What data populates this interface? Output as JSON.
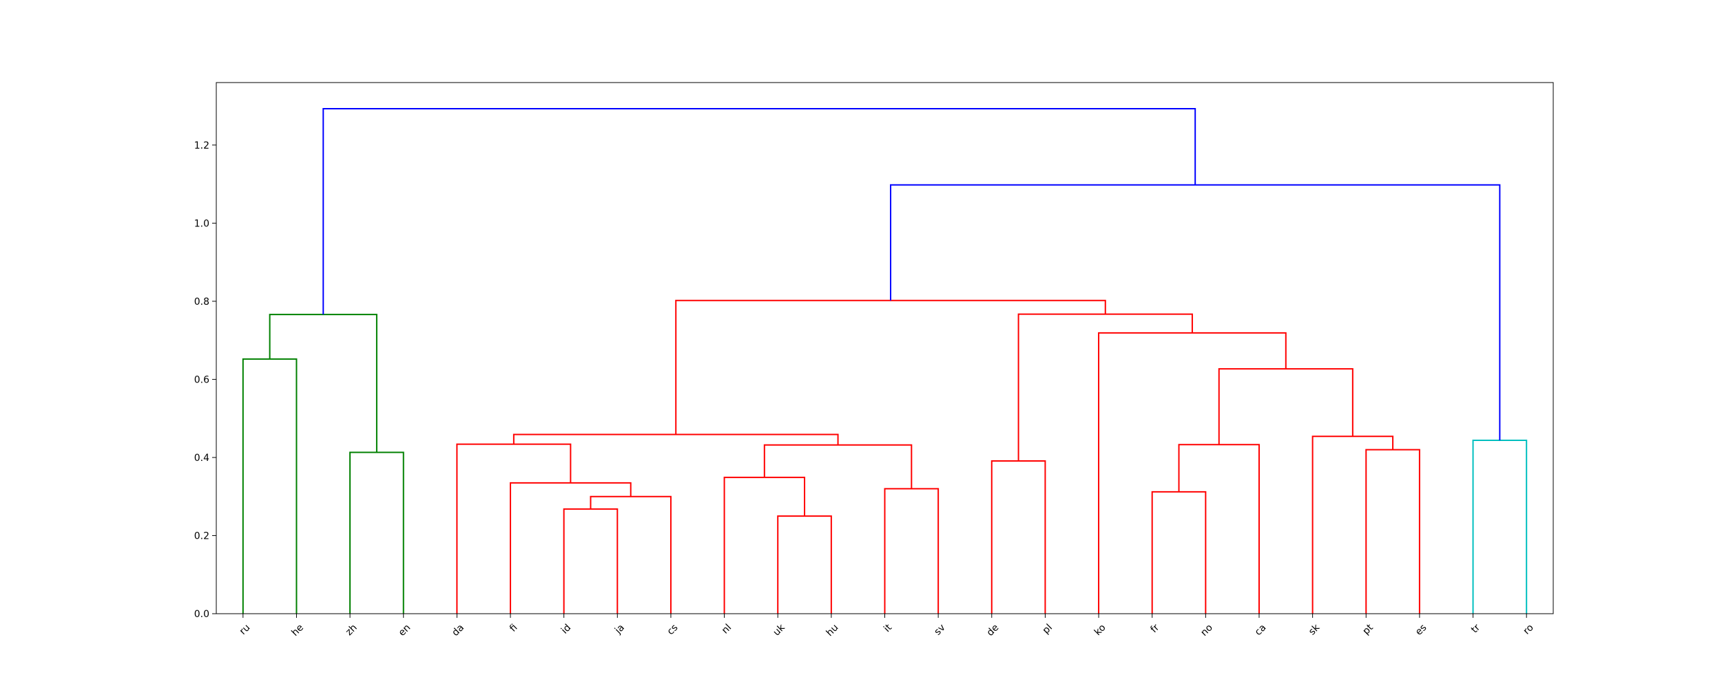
{
  "chart_data": {
    "type": "dendrogram",
    "leaves": [
      "ru",
      "he",
      "zh",
      "en",
      "da",
      "fi",
      "id",
      "ja",
      "cs",
      "nl",
      "uk",
      "hu",
      "it",
      "sv",
      "de",
      "pl",
      "ko",
      "fr",
      "no",
      "ca",
      "sk",
      "pt",
      "es",
      "tr",
      "ro"
    ],
    "ylim": [
      0,
      1.36
    ],
    "yticks": [
      0.0,
      0.2,
      0.4,
      0.6,
      0.8,
      1.0,
      1.2
    ],
    "ytick_labels": [
      "0.0",
      "0.2",
      "0.4",
      "0.6",
      "0.8",
      "1.0",
      "1.2"
    ],
    "colors": {
      "above_threshold": "#0000ff",
      "cluster_ru_en": "#008000",
      "cluster_da_es": "#ff0000",
      "cluster_tr_ro": "#00bfbf"
    },
    "merges": [
      {
        "id": "ru-he",
        "left": "ru",
        "right": "he",
        "height": 0.652,
        "color": "cluster_ru_en"
      },
      {
        "id": "zh-en",
        "left": "zh",
        "right": "en",
        "height": 0.413,
        "color": "cluster_ru_en"
      },
      {
        "id": "ru-en",
        "left": "ru-he",
        "right": "zh-en",
        "height": 0.766,
        "color": "cluster_ru_en"
      },
      {
        "id": "id-ja",
        "left": "id",
        "right": "ja",
        "height": 0.268,
        "color": "cluster_da_es"
      },
      {
        "id": "id-cs",
        "left": "id-ja",
        "right": "cs",
        "height": 0.3,
        "color": "cluster_da_es"
      },
      {
        "id": "fi-cs",
        "left": "fi",
        "right": "id-cs",
        "height": 0.335,
        "color": "cluster_da_es"
      },
      {
        "id": "da-cs",
        "left": "da",
        "right": "fi-cs",
        "height": 0.434,
        "color": "cluster_da_es"
      },
      {
        "id": "uk-hu",
        "left": "uk",
        "right": "hu",
        "height": 0.25,
        "color": "cluster_da_es"
      },
      {
        "id": "nl-hu",
        "left": "nl",
        "right": "uk-hu",
        "height": 0.349,
        "color": "cluster_da_es"
      },
      {
        "id": "it-sv",
        "left": "it",
        "right": "sv",
        "height": 0.32,
        "color": "cluster_da_es"
      },
      {
        "id": "nl-sv",
        "left": "nl-hu",
        "right": "it-sv",
        "height": 0.432,
        "color": "cluster_da_es"
      },
      {
        "id": "da-sv",
        "left": "da-cs",
        "right": "nl-sv",
        "height": 0.459,
        "color": "cluster_da_es"
      },
      {
        "id": "de-pl",
        "left": "de",
        "right": "pl",
        "height": 0.391,
        "color": "cluster_da_es"
      },
      {
        "id": "fr-no",
        "left": "fr",
        "right": "no",
        "height": 0.312,
        "color": "cluster_da_es"
      },
      {
        "id": "fr-ca",
        "left": "fr-no",
        "right": "ca",
        "height": 0.433,
        "color": "cluster_da_es"
      },
      {
        "id": "pt-es",
        "left": "pt",
        "right": "es",
        "height": 0.42,
        "color": "cluster_da_es"
      },
      {
        "id": "sk-es",
        "left": "sk",
        "right": "pt-es",
        "height": 0.454,
        "color": "cluster_da_es"
      },
      {
        "id": "fr-es",
        "left": "fr-ca",
        "right": "sk-es",
        "height": 0.627,
        "color": "cluster_da_es"
      },
      {
        "id": "ko-es",
        "left": "ko",
        "right": "fr-es",
        "height": 0.719,
        "color": "cluster_da_es"
      },
      {
        "id": "de-es",
        "left": "de-pl",
        "right": "ko-es",
        "height": 0.767,
        "color": "cluster_da_es"
      },
      {
        "id": "da-es",
        "left": "da-sv",
        "right": "de-es",
        "height": 0.802,
        "color": "cluster_da_es"
      },
      {
        "id": "tr-ro",
        "left": "tr",
        "right": "ro",
        "height": 0.444,
        "color": "cluster_tr_ro"
      },
      {
        "id": "da-ro",
        "left": "da-es",
        "right": "tr-ro",
        "height": 1.098,
        "color": "above_threshold"
      },
      {
        "id": "root",
        "left": "ru-en",
        "right": "da-ro",
        "height": 1.293,
        "color": "above_threshold"
      }
    ],
    "title": "",
    "xlabel": "",
    "ylabel": "",
    "grid": false,
    "legend": "none"
  }
}
